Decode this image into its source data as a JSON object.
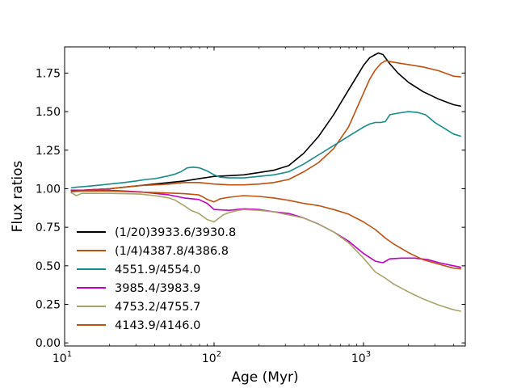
{
  "chart_data": {
    "type": "line",
    "xscale": "log",
    "xlim": [
      10,
      4800
    ],
    "ylim": [
      -0.02,
      1.92
    ],
    "xlabel": "Age (Myr)",
    "ylabel": "Flux ratios",
    "legend_position": "lower-left",
    "x_ticks": [
      {
        "value": 10,
        "base": "10",
        "exp": "1"
      },
      {
        "value": 100,
        "base": "10",
        "exp": "2"
      },
      {
        "value": 1000,
        "base": "10",
        "exp": "3"
      }
    ],
    "y_ticks": [
      {
        "value": 0.0,
        "label": "0.00"
      },
      {
        "value": 0.25,
        "label": "0.25"
      },
      {
        "value": 0.5,
        "label": "0.50"
      },
      {
        "value": 0.75,
        "label": "0.75"
      },
      {
        "value": 1.0,
        "label": "1.00"
      },
      {
        "value": 1.25,
        "label": "1.25"
      },
      {
        "value": 1.5,
        "label": "1.50"
      },
      {
        "value": 1.75,
        "label": "1.75"
      }
    ],
    "series": [
      {
        "name": "(1/20)3933.6/3930.8",
        "color": "#000000",
        "x": [
          11,
          13,
          16,
          20,
          25,
          32,
          40,
          50,
          63,
          79,
          100,
          126,
          158,
          200,
          251,
          316,
          398,
          501,
          631,
          794,
          1000,
          1100,
          1200,
          1260,
          1350,
          1500,
          1700,
          2000,
          2500,
          3200,
          4000,
          4500
        ],
        "y": [
          0.99,
          0.99,
          0.995,
          1.0,
          1.01,
          1.02,
          1.03,
          1.04,
          1.05,
          1.065,
          1.08,
          1.085,
          1.09,
          1.105,
          1.12,
          1.15,
          1.23,
          1.34,
          1.48,
          1.64,
          1.8,
          1.85,
          1.87,
          1.88,
          1.87,
          1.81,
          1.75,
          1.69,
          1.63,
          1.58,
          1.545,
          1.535
        ]
      },
      {
        "name": "(1/4)4387.8/4386.8",
        "color": "#c0500f",
        "x": [
          11,
          13,
          16,
          20,
          25,
          32,
          40,
          50,
          63,
          79,
          100,
          126,
          158,
          200,
          251,
          316,
          398,
          501,
          631,
          794,
          1000,
          1100,
          1200,
          1300,
          1400,
          1600,
          2000,
          2500,
          3200,
          4000,
          4500
        ],
        "y": [
          0.99,
          0.99,
          0.995,
          1.0,
          1.01,
          1.02,
          1.025,
          1.03,
          1.04,
          1.04,
          1.03,
          1.025,
          1.025,
          1.03,
          1.04,
          1.06,
          1.11,
          1.17,
          1.26,
          1.4,
          1.62,
          1.71,
          1.77,
          1.81,
          1.83,
          1.82,
          1.805,
          1.79,
          1.765,
          1.73,
          1.725
        ]
      },
      {
        "name": "4551.9/4554.0",
        "color": "#178b8b",
        "x": [
          11,
          12,
          14,
          16,
          20,
          25,
          30,
          35,
          40,
          45,
          50,
          55,
          60,
          66,
          72,
          80,
          90,
          100,
          110,
          126,
          158,
          200,
          251,
          316,
          398,
          501,
          631,
          794,
          1000,
          1100,
          1200,
          1300,
          1400,
          1500,
          1700,
          2000,
          2300,
          2600,
          3000,
          3500,
          4000,
          4500
        ],
        "y": [
          1.005,
          1.01,
          1.015,
          1.02,
          1.03,
          1.04,
          1.05,
          1.06,
          1.065,
          1.075,
          1.085,
          1.095,
          1.11,
          1.135,
          1.14,
          1.135,
          1.115,
          1.09,
          1.075,
          1.07,
          1.07,
          1.08,
          1.09,
          1.11,
          1.16,
          1.22,
          1.28,
          1.34,
          1.4,
          1.42,
          1.43,
          1.43,
          1.435,
          1.48,
          1.49,
          1.5,
          1.495,
          1.48,
          1.43,
          1.39,
          1.355,
          1.34
        ]
      },
      {
        "name": "3985.4/3983.9",
        "color": "#c000c0",
        "x": [
          11,
          13,
          16,
          20,
          25,
          32,
          40,
          50,
          63,
          79,
          90,
          100,
          126,
          158,
          200,
          251,
          316,
          398,
          501,
          631,
          794,
          1000,
          1200,
          1350,
          1500,
          1800,
          2200,
          2700,
          3200,
          4000,
          4500
        ],
        "y": [
          0.99,
          0.99,
          0.99,
          0.99,
          0.985,
          0.98,
          0.97,
          0.96,
          0.94,
          0.93,
          0.905,
          0.865,
          0.86,
          0.87,
          0.865,
          0.85,
          0.84,
          0.81,
          0.77,
          0.72,
          0.66,
          0.58,
          0.53,
          0.52,
          0.545,
          0.55,
          0.55,
          0.54,
          0.52,
          0.5,
          0.49
        ]
      },
      {
        "name": "4753.2/4755.7",
        "color": "#a8a468",
        "x": [
          11,
          12,
          13,
          16,
          20,
          25,
          32,
          40,
          50,
          55,
          63,
          70,
          79,
          90,
          100,
          115,
          126,
          145,
          158,
          200,
          251,
          316,
          398,
          501,
          631,
          794,
          1000,
          1200,
          1400,
          1600,
          2000,
          2500,
          3200,
          4000,
          4500
        ],
        "y": [
          0.975,
          0.955,
          0.97,
          0.97,
          0.97,
          0.968,
          0.965,
          0.955,
          0.94,
          0.925,
          0.89,
          0.86,
          0.84,
          0.8,
          0.785,
          0.83,
          0.845,
          0.86,
          0.865,
          0.86,
          0.85,
          0.83,
          0.81,
          0.77,
          0.72,
          0.65,
          0.55,
          0.46,
          0.42,
          0.38,
          0.33,
          0.285,
          0.245,
          0.215,
          0.205
        ]
      },
      {
        "name": "4143.9/4146.0",
        "color": "#c0500f",
        "x": [
          11,
          13,
          16,
          20,
          25,
          32,
          40,
          50,
          63,
          79,
          85,
          90,
          100,
          110,
          126,
          158,
          200,
          251,
          316,
          398,
          501,
          631,
          794,
          1000,
          1200,
          1400,
          1600,
          2000,
          2500,
          3200,
          4000,
          4500
        ],
        "y": [
          0.98,
          0.985,
          0.985,
          0.985,
          0.982,
          0.978,
          0.975,
          0.972,
          0.968,
          0.96,
          0.945,
          0.93,
          0.915,
          0.935,
          0.945,
          0.955,
          0.95,
          0.94,
          0.925,
          0.905,
          0.89,
          0.865,
          0.835,
          0.785,
          0.735,
          0.68,
          0.64,
          0.585,
          0.54,
          0.51,
          0.485,
          0.48
        ]
      }
    ]
  }
}
